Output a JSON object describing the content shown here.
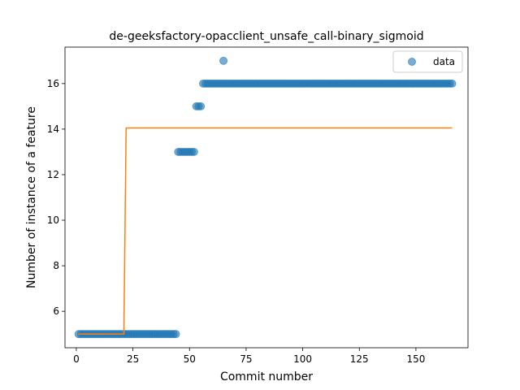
{
  "chart_data": {
    "type": "scatter",
    "title": "de-geeksfactory-opacclient_unsafe_call-binary_sigmoid",
    "xlabel": "Commit number",
    "ylabel": "Number of instance of a feature",
    "xlim": [
      -5,
      173
    ],
    "ylim": [
      4.4,
      17.6
    ],
    "xticks": [
      0,
      25,
      50,
      75,
      100,
      125,
      150
    ],
    "yticks": [
      6,
      8,
      10,
      12,
      14,
      16
    ],
    "legend": {
      "position": "top-right",
      "entries": [
        "data"
      ]
    },
    "grid": false,
    "colors": {
      "data": "#1f77b4",
      "fit": "#ff7f0e"
    },
    "series": [
      {
        "name": "data",
        "kind": "scatter",
        "segments": [
          {
            "x_start": 1,
            "x_end": 44,
            "y": 5
          },
          {
            "x_start": 45,
            "x_end": 52,
            "y": 13
          },
          {
            "x_start": 53,
            "x_end": 55,
            "y": 15
          },
          {
            "x_start": 56,
            "x_end": 166,
            "y": 16
          }
        ],
        "extra_points": [
          {
            "x": 65,
            "y": 17
          }
        ]
      },
      {
        "kind": "line",
        "x": [
          1,
          21,
          22,
          166
        ],
        "y": [
          5,
          5,
          14.05,
          14.05
        ]
      }
    ]
  }
}
